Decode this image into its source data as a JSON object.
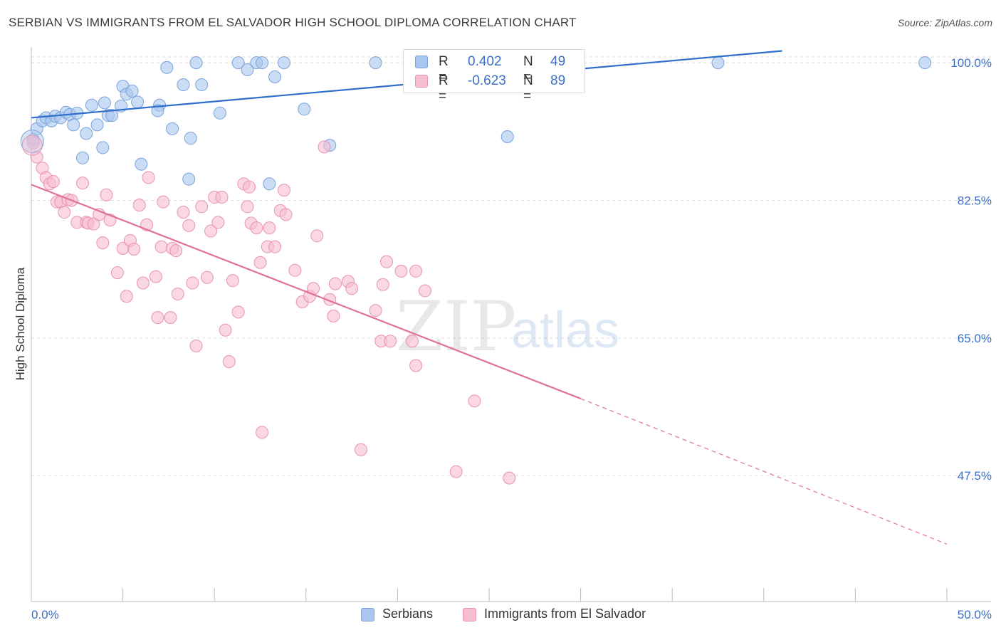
{
  "title": "SERBIAN VS IMMIGRANTS FROM EL SALVADOR HIGH SCHOOL DIPLOMA CORRELATION CHART",
  "source": "Source: ZipAtlas.com",
  "watermark": {
    "zip": "ZIP",
    "atlas": "atlas"
  },
  "legend_stats": [
    {
      "r_label": "R =",
      "r_value": "0.402",
      "n_label": "N =",
      "n_value": "49"
    },
    {
      "r_label": "R =",
      "r_value": "-0.623",
      "n_label": "N =",
      "n_value": "89"
    }
  ],
  "colors": {
    "blue_fill": "#a8c6ee",
    "blue_stroke": "#7aa3dd",
    "blue_line": "#2f6fcb",
    "pink_fill": "#f6bcd0",
    "pink_stroke": "#e893b1",
    "pink_line": "#e0709a",
    "axis_tick_text": "#3a6fc8",
    "grid": "#dddddd"
  },
  "chart_data": {
    "type": "scatter",
    "ylabel": "High School Diploma",
    "xlim": [
      0,
      50
    ],
    "ylim": [
      31.5,
      102
    ],
    "x_tick_labels": [
      {
        "value": 0,
        "label": "0.0%"
      },
      {
        "value": 50,
        "label": "50.0%"
      }
    ],
    "y_ticks": [
      {
        "value": 100.0,
        "label": "100.0%"
      },
      {
        "value": 82.5,
        "label": "82.5%"
      },
      {
        "value": 65.0,
        "label": "65.0%"
      },
      {
        "value": 47.5,
        "label": "47.5%"
      }
    ],
    "grid": true,
    "series": [
      {
        "name": "Serbians",
        "color": "#a8c6ee",
        "r": 0.402,
        "n": 49,
        "trend": {
          "x0": 0,
          "y0": 93.0,
          "x1": 41,
          "y1": 101.5
        },
        "points": [
          [
            0.1,
            90.2
          ],
          [
            0.3,
            91.6
          ],
          [
            0.6,
            92.6
          ],
          [
            0.8,
            93.0
          ],
          [
            1.1,
            92.6
          ],
          [
            1.3,
            93.2
          ],
          [
            1.6,
            93.0
          ],
          [
            1.9,
            93.7
          ],
          [
            2.1,
            93.4
          ],
          [
            2.3,
            92.1
          ],
          [
            2.5,
            93.6
          ],
          [
            2.8,
            87.9
          ],
          [
            3.0,
            91.0
          ],
          [
            3.3,
            94.6
          ],
          [
            3.6,
            92.1
          ],
          [
            3.9,
            89.2
          ],
          [
            4.0,
            94.9
          ],
          [
            4.2,
            93.3
          ],
          [
            4.4,
            93.3
          ],
          [
            4.9,
            94.5
          ],
          [
            5.0,
            97.0
          ],
          [
            5.2,
            96.0
          ],
          [
            5.5,
            96.4
          ],
          [
            5.8,
            95.0
          ],
          [
            6.0,
            87.1
          ],
          [
            7.0,
            94.6
          ],
          [
            6.9,
            93.9
          ],
          [
            7.4,
            99.4
          ],
          [
            7.7,
            91.6
          ],
          [
            8.3,
            97.2
          ],
          [
            8.6,
            85.2
          ],
          [
            8.7,
            90.4
          ],
          [
            9.0,
            100.0
          ],
          [
            9.3,
            97.2
          ],
          [
            10.3,
            93.6
          ],
          [
            11.3,
            100.0
          ],
          [
            11.8,
            99.1
          ],
          [
            12.3,
            100.0
          ],
          [
            12.6,
            100.0
          ],
          [
            13.0,
            84.6
          ],
          [
            13.3,
            98.2
          ],
          [
            13.8,
            100.0
          ],
          [
            14.9,
            94.1
          ],
          [
            16.3,
            89.5
          ],
          [
            18.8,
            100.0
          ],
          [
            20.8,
            100.0
          ],
          [
            26.0,
            90.6
          ],
          [
            37.5,
            100.0
          ],
          [
            48.8,
            100.0
          ]
        ]
      },
      {
        "name": "Immigrants from El Salvador",
        "color": "#f6bcd0",
        "r": -0.623,
        "n": 89,
        "trend": {
          "x0": 0,
          "y0": 84.5,
          "x1": 30,
          "y1": 57.3,
          "dashed_to_x": 50,
          "dashed_to_y": 38.8
        },
        "points": [
          [
            0.1,
            89.8
          ],
          [
            0.3,
            88.0
          ],
          [
            0.6,
            86.6
          ],
          [
            0.8,
            85.4
          ],
          [
            1.0,
            84.6
          ],
          [
            1.2,
            84.9
          ],
          [
            1.4,
            82.3
          ],
          [
            1.6,
            82.3
          ],
          [
            1.8,
            81.0
          ],
          [
            2.0,
            82.6
          ],
          [
            2.2,
            82.5
          ],
          [
            2.5,
            79.7
          ],
          [
            2.8,
            84.7
          ],
          [
            3.0,
            79.7
          ],
          [
            3.1,
            79.6
          ],
          [
            3.4,
            79.5
          ],
          [
            3.7,
            80.7
          ],
          [
            3.9,
            77.1
          ],
          [
            4.1,
            83.2
          ],
          [
            4.3,
            80.0
          ],
          [
            4.7,
            73.3
          ],
          [
            5.0,
            76.4
          ],
          [
            5.2,
            70.3
          ],
          [
            5.4,
            77.4
          ],
          [
            5.6,
            76.3
          ],
          [
            5.9,
            81.9
          ],
          [
            6.1,
            72.0
          ],
          [
            6.3,
            79.4
          ],
          [
            6.4,
            85.4
          ],
          [
            6.8,
            72.8
          ],
          [
            6.9,
            67.6
          ],
          [
            7.1,
            76.6
          ],
          [
            7.2,
            82.3
          ],
          [
            7.6,
            67.6
          ],
          [
            7.7,
            76.4
          ],
          [
            7.9,
            76.1
          ],
          [
            8.0,
            70.6
          ],
          [
            8.3,
            81.0
          ],
          [
            8.6,
            79.3
          ],
          [
            8.8,
            72.0
          ],
          [
            9.0,
            64.0
          ],
          [
            9.3,
            81.7
          ],
          [
            9.6,
            72.7
          ],
          [
            9.8,
            78.6
          ],
          [
            10.0,
            82.9
          ],
          [
            10.2,
            79.7
          ],
          [
            10.4,
            82.9
          ],
          [
            10.6,
            66.0
          ],
          [
            10.8,
            62.0
          ],
          [
            11.0,
            72.3
          ],
          [
            11.3,
            68.3
          ],
          [
            11.6,
            84.6
          ],
          [
            11.8,
            81.7
          ],
          [
            11.9,
            84.2
          ],
          [
            12.0,
            79.6
          ],
          [
            12.3,
            79.0
          ],
          [
            12.5,
            74.6
          ],
          [
            12.6,
            53.0
          ],
          [
            12.9,
            76.6
          ],
          [
            13.0,
            79.0
          ],
          [
            13.3,
            76.6
          ],
          [
            13.6,
            81.2
          ],
          [
            13.8,
            83.8
          ],
          [
            13.9,
            80.7
          ],
          [
            14.4,
            73.6
          ],
          [
            14.8,
            69.6
          ],
          [
            15.2,
            70.3
          ],
          [
            15.4,
            71.3
          ],
          [
            15.6,
            78.0
          ],
          [
            16.0,
            89.3
          ],
          [
            16.3,
            69.9
          ],
          [
            16.5,
            67.8
          ],
          [
            16.6,
            71.9
          ],
          [
            17.3,
            72.2
          ],
          [
            17.5,
            71.3
          ],
          [
            18.0,
            50.8
          ],
          [
            18.8,
            68.5
          ],
          [
            19.1,
            64.6
          ],
          [
            19.2,
            71.8
          ],
          [
            19.4,
            74.7
          ],
          [
            19.6,
            64.6
          ],
          [
            20.2,
            73.5
          ],
          [
            20.8,
            64.6
          ],
          [
            21.0,
            61.5
          ],
          [
            21.0,
            73.5
          ],
          [
            21.5,
            71.0
          ],
          [
            23.2,
            48.0
          ],
          [
            24.2,
            57.0
          ],
          [
            26.1,
            47.2
          ]
        ]
      }
    ]
  }
}
